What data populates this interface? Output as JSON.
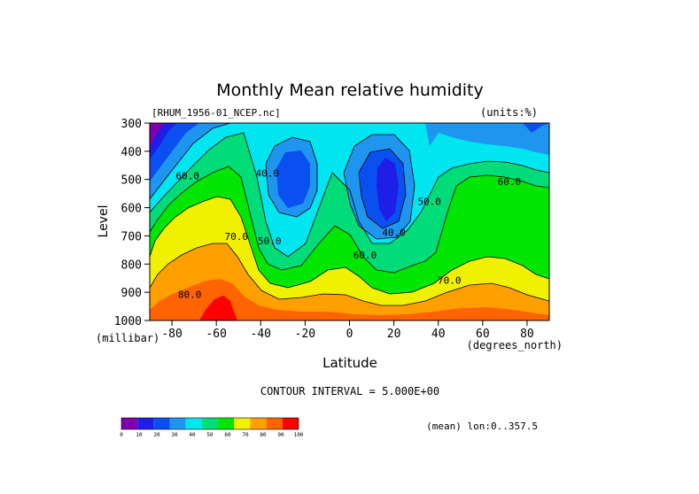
{
  "chart_data": {
    "type": "heatmap",
    "title": "Monthly Mean relative humidity",
    "dataset_label": "[RHUM_1956-01_NCEP.nc]",
    "units_label": "(units:%)",
    "xlabel": "Latitude",
    "x_units": "(degrees_north)",
    "ylabel": "Level",
    "y_units": "(millibar)",
    "xlim": [
      -90,
      90
    ],
    "ylim": [
      1000,
      300
    ],
    "x_ticks": [
      -80,
      -60,
      -40,
      -20,
      0,
      20,
      40,
      60,
      80
    ],
    "x_tick_labels": [
      "-80",
      "-60",
      "-40",
      "-20",
      "0",
      "20",
      "40",
      "60",
      "80"
    ],
    "y_ticks": [
      300,
      400,
      500,
      600,
      700,
      800,
      900,
      1000
    ],
    "y_tick_labels": [
      "300",
      "400",
      "500",
      "600",
      "700",
      "800",
      "900",
      "1000"
    ],
    "contour_interval_text": "CONTOUR INTERVAL = 5.000E+00",
    "mean_text": "(mean) lon:0..357.5",
    "colorbar": {
      "levels": [
        0,
        10,
        20,
        30,
        40,
        50,
        60,
        70,
        80,
        90,
        100
      ],
      "labels": [
        "0",
        "10",
        "20",
        "30",
        "40",
        "50",
        "60",
        "70",
        "80",
        "90",
        "100"
      ],
      "colors": [
        "#8000b0",
        "#1e1ee6",
        "#0a50f0",
        "#1e96f0",
        "#00e6f0",
        "#00dc78",
        "#00e600",
        "#f0f000",
        "#ffa000",
        "#ff6400",
        "#ff0000"
      ]
    },
    "contour_labels": [
      {
        "text": "60.0",
        "lat": -73,
        "level": 500
      },
      {
        "text": "40.0",
        "lat": -37,
        "level": 490
      },
      {
        "text": "50.0",
        "lat": -36,
        "level": 730
      },
      {
        "text": "70.0",
        "lat": -51,
        "level": 715
      },
      {
        "text": "80.0",
        "lat": -72,
        "level": 920
      },
      {
        "text": "40.0",
        "lat": 20,
        "level": 700
      },
      {
        "text": "60.0",
        "lat": 7,
        "level": 780
      },
      {
        "text": "50.0",
        "lat": 36,
        "level": 590
      },
      {
        "text": "70.0",
        "lat": 45,
        "level": 870
      },
      {
        "text": "60.0",
        "lat": 72,
        "level": 520
      }
    ]
  }
}
